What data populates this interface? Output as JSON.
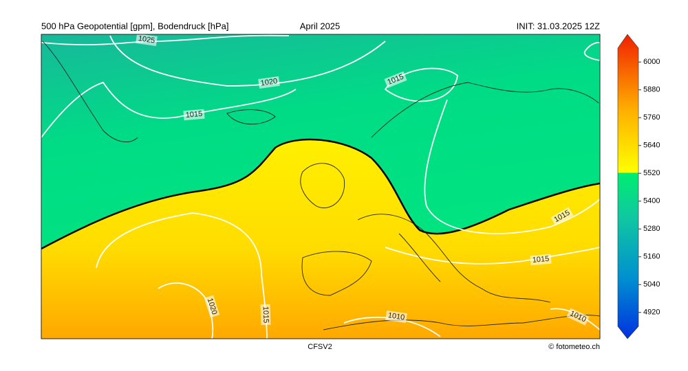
{
  "header": {
    "left": "500 hPa Geopotential [gpm], Bodendruck [hPa]",
    "center": "April 2025",
    "right": "INIT: 31.03.2025 12Z"
  },
  "footer": {
    "model": "CFSV2",
    "credit": "© fotometeo.ch"
  },
  "colorbar": {
    "ticks": [
      4920,
      5040,
      5160,
      5280,
      5400,
      5520,
      5640,
      5760,
      5880,
      6000
    ],
    "lim": [
      4860,
      6060
    ]
  },
  "isobar_labels": [
    1025,
    1020,
    1015,
    1015,
    1015,
    1015,
    1020,
    1015,
    1010,
    1010
  ]
}
